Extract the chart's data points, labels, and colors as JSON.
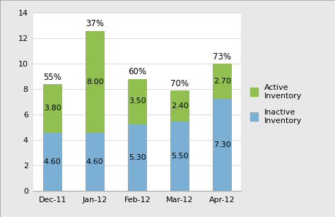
{
  "categories": [
    "Dec-11",
    "Jan-12",
    "Feb-12",
    "Mar-12",
    "Apr-12"
  ],
  "inactive": [
    4.6,
    4.6,
    5.3,
    5.5,
    7.3
  ],
  "active": [
    3.8,
    8.0,
    3.5,
    2.4,
    2.7
  ],
  "percentages": [
    "55%",
    "37%",
    "60%",
    "70%",
    "73%"
  ],
  "inactive_color": "#7BAFD4",
  "active_color": "#92C050",
  "background_color": "#E8E8E8",
  "plot_bg_color": "#FFFFFF",
  "border_color": "#AAAAAA",
  "ylim": [
    0,
    14
  ],
  "yticks": [
    0,
    2,
    4,
    6,
    8,
    10,
    12,
    14
  ],
  "bar_width": 0.45,
  "label_fontsize": 8,
  "tick_fontsize": 8,
  "pct_fontsize": 8.5
}
